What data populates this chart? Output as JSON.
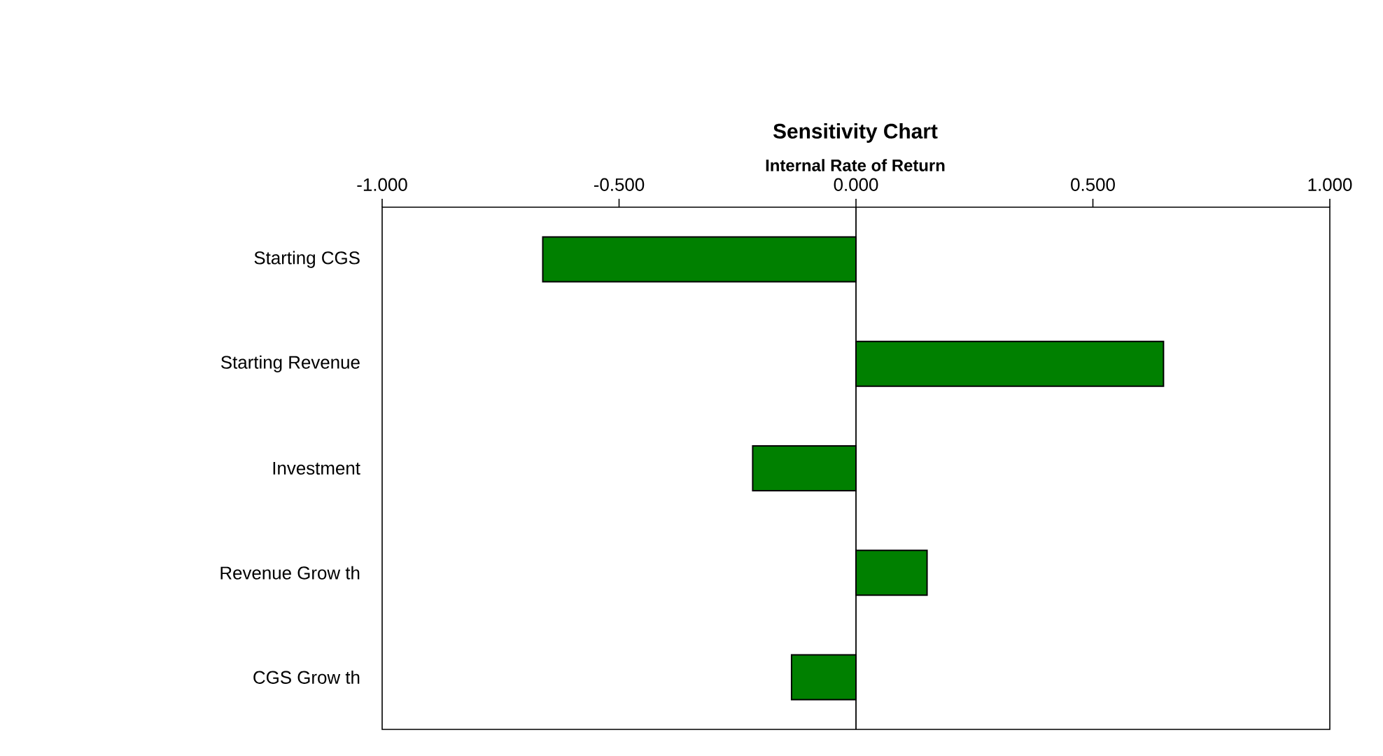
{
  "chart_data": {
    "type": "bar",
    "orientation": "horizontal",
    "title": "Sensitivity Chart",
    "subtitle": "Internal Rate of Return",
    "categories": [
      "Starting CGS",
      "Starting Revenue",
      "Investment",
      "Revenue Grow th",
      "CGS Grow th"
    ],
    "values": [
      -0.661,
      0.649,
      -0.218,
      0.15,
      -0.136
    ],
    "color": "#008000",
    "xlim": [
      -1,
      1
    ],
    "xticks": [
      {
        "value": -1,
        "label": "-1.000"
      },
      {
        "value": -0.5,
        "label": "-0.500"
      },
      {
        "value": 0,
        "label": "0.000"
      },
      {
        "value": 0.5,
        "label": "0.500"
      },
      {
        "value": 1,
        "label": "1.000"
      }
    ],
    "ref_lines": [
      {
        "axis": "x",
        "value": 0,
        "color": "#000000"
      }
    ]
  }
}
